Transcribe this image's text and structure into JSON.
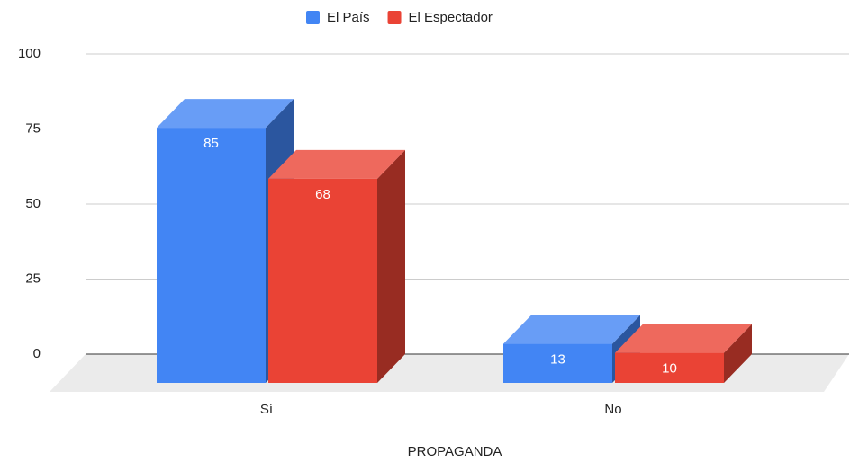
{
  "chart_data": {
    "type": "bar3d",
    "x_label": "PROPAGANDA",
    "categories": [
      "Sí",
      "No"
    ],
    "series": [
      {
        "name": "El País",
        "color": "#4285f4",
        "values": [
          85,
          13
        ]
      },
      {
        "name": "El Espectador",
        "color": "#ea4335",
        "values": [
          68,
          10
        ]
      }
    ],
    "ylim": [
      0,
      100
    ],
    "yticks": [
      0,
      25,
      50,
      75,
      100
    ],
    "grid": true,
    "legend": "top"
  }
}
